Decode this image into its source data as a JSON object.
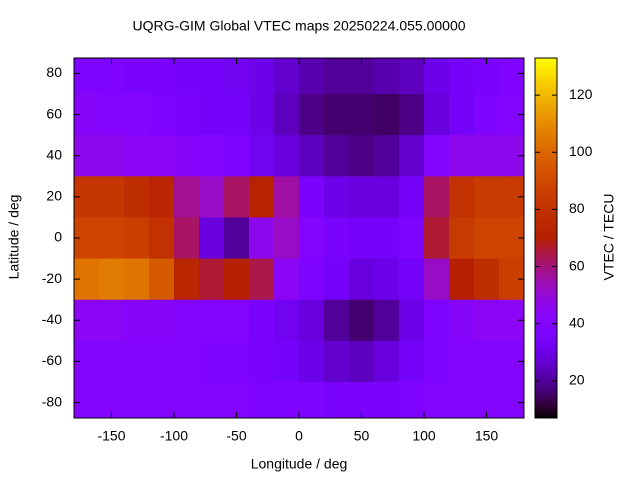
{
  "chart_data": {
    "type": "heatmap",
    "title": "UQRG-GIM Global VTEC maps 20250224.055.00000",
    "x_label": "Longitude / deg",
    "y_label": "Latitude / deg",
    "colorbar_label": "VTEC / TECU",
    "palette": "gnuplot-7-5-15",
    "x": [
      -170,
      -150,
      -130,
      -110,
      -90,
      -70,
      -50,
      -30,
      -10,
      10,
      30,
      50,
      70,
      90,
      110,
      130,
      150,
      170
    ],
    "y": [
      80,
      60,
      40,
      20,
      0,
      -20,
      -40,
      -60,
      -80
    ],
    "z": [
      [
        38,
        38,
        36,
        36,
        34,
        34,
        32,
        30,
        26,
        22,
        20,
        20,
        22,
        24,
        30,
        34,
        36,
        38
      ],
      [
        42,
        40,
        40,
        38,
        36,
        34,
        34,
        30,
        24,
        18,
        16,
        16,
        15,
        18,
        28,
        34,
        38,
        40
      ],
      [
        46,
        46,
        44,
        44,
        42,
        40,
        38,
        32,
        28,
        24,
        20,
        18,
        20,
        26,
        40,
        46,
        46,
        46
      ],
      [
        82,
        82,
        78,
        74,
        58,
        52,
        62,
        72,
        56,
        36,
        30,
        28,
        28,
        34,
        62,
        80,
        84,
        84
      ],
      [
        88,
        88,
        86,
        80,
        62,
        28,
        20,
        46,
        52,
        40,
        36,
        34,
        34,
        38,
        66,
        84,
        88,
        88
      ],
      [
        104,
        106,
        104,
        96,
        74,
        66,
        70,
        64,
        44,
        38,
        34,
        28,
        30,
        34,
        52,
        70,
        78,
        86
      ],
      [
        44,
        44,
        42,
        42,
        40,
        40,
        40,
        36,
        32,
        28,
        20,
        16,
        20,
        30,
        38,
        42,
        44,
        44
      ],
      [
        40,
        40,
        40,
        40,
        40,
        38,
        38,
        36,
        34,
        30,
        26,
        24,
        28,
        34,
        38,
        40,
        40,
        40
      ],
      [
        40,
        40,
        40,
        40,
        40,
        40,
        40,
        38,
        38,
        38,
        36,
        36,
        36,
        38,
        40,
        40,
        40,
        40
      ]
    ],
    "xlim": [
      -180,
      180
    ],
    "ylim": [
      -87.5,
      87.5
    ],
    "clim": [
      7,
      133
    ],
    "xticks": [
      -150,
      -100,
      -50,
      0,
      50,
      100,
      150
    ],
    "yticks": [
      -80,
      -60,
      -40,
      -20,
      0,
      20,
      40,
      60,
      80
    ],
    "cticks": [
      20,
      40,
      60,
      80,
      100,
      120
    ]
  }
}
